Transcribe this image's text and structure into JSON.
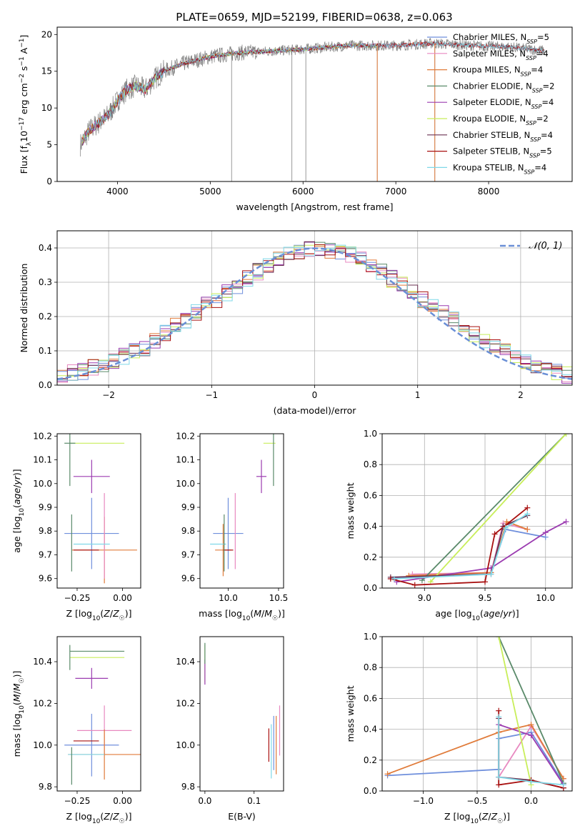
{
  "figure_title": "PLATE=0659, MJD=52199, FIBERID=0638, z=0.063",
  "colors": {
    "chabrier_miles": "#6f8fdc",
    "salpeter_miles": "#e889c0",
    "kroupa_miles": "#e07b3a",
    "chabrier_elodie": "#5a8a6a",
    "salpeter_elodie": "#9b3bb0",
    "kroupa_elodie": "#c8ee5a",
    "chabrier_stelib": "#6a3050",
    "salpeter_stelib": "#a81010",
    "kroupa_stelib": "#7fd8e8",
    "data": "#808080",
    "normal": "#6a8fd6",
    "grid": "#b0b0b0"
  },
  "chart_data": [
    {
      "id": "spectrum",
      "type": "line",
      "title": "",
      "xlabel": "wavelength [Angstrom, rest frame]",
      "ylabel": "Flux [f_λ10^-17 erg cm^-2 s^-1 A^-1]",
      "xlim": [
        3350,
        8900
      ],
      "ylim": [
        0,
        21
      ],
      "xticks": [
        4000,
        5000,
        6000,
        7000,
        8000
      ],
      "yticks": [
        0,
        5,
        10,
        15,
        20
      ],
      "grid": false,
      "legend_position": "right",
      "legend": [
        {
          "label": "Chabrier MILES, N",
          "sub": "SSP",
          "suffix": "=5",
          "color_key": "chabrier_miles"
        },
        {
          "label": "Salpeter MILES, N",
          "sub": "SSP",
          "suffix": "=4",
          "color_key": "salpeter_miles"
        },
        {
          "label": "Kroupa MILES, N",
          "sub": "SSP",
          "suffix": "=4",
          "color_key": "kroupa_miles"
        },
        {
          "label": "Chabrier ELODIE, N",
          "sub": "SSP",
          "suffix": "=2",
          "color_key": "chabrier_elodie"
        },
        {
          "label": "Salpeter ELODIE, N",
          "sub": "SSP",
          "suffix": "=4",
          "color_key": "salpeter_elodie"
        },
        {
          "label": "Kroupa ELODIE, N",
          "sub": "SSP",
          "suffix": "=2",
          "color_key": "kroupa_elodie"
        },
        {
          "label": "Chabrier STELIB, N",
          "sub": "SSP",
          "suffix": "=4",
          "color_key": "chabrier_stelib"
        },
        {
          "label": "Salpeter STELIB, N",
          "sub": "SSP",
          "suffix": "=5",
          "color_key": "salpeter_stelib"
        },
        {
          "label": "Kroupa STELIB, N",
          "sub": "SSP",
          "suffix": "=4",
          "color_key": "kroupa_stelib"
        }
      ],
      "continuum": {
        "x": [
          3600,
          3700,
          3800,
          3900,
          4000,
          4100,
          4200,
          4300,
          4400,
          4500,
          4700,
          5000,
          5300,
          5600,
          6000,
          6500,
          7000,
          7400,
          7800,
          8200,
          8600
        ],
        "y": [
          5,
          7,
          8,
          9,
          11,
          12.5,
          13,
          12.5,
          14,
          15,
          16,
          17,
          17.5,
          17.7,
          18,
          18.5,
          18.5,
          18.8,
          18.5,
          18.3,
          17.8
        ]
      },
      "data_spikes": [
        {
          "x": 5230,
          "y_low": 0
        },
        {
          "x": 5880,
          "y_low": 0
        },
        {
          "x": 6030,
          "y_low": 0
        },
        {
          "x": 6800,
          "y_low": 0
        },
        {
          "x": 7420,
          "y_low": 0
        }
      ]
    },
    {
      "id": "residual_hist",
      "type": "line",
      "title": "",
      "xlabel": "(data-model)/error",
      "ylabel": "Normed distribution",
      "xlim": [
        -2.5,
        2.5
      ],
      "ylim": [
        0,
        0.45
      ],
      "xticks": [
        -2,
        -1,
        0,
        1,
        2
      ],
      "yticks": [
        0.0,
        0.1,
        0.2,
        0.3,
        0.4
      ],
      "grid": true,
      "legend_position": "top-right",
      "legend": [
        {
          "label": "N(0,1)",
          "color_key": "normal"
        }
      ],
      "bin_width": 0.1,
      "bin_start": -2.5,
      "base_hist": [
        0.03,
        0.035,
        0.04,
        0.05,
        0.06,
        0.07,
        0.085,
        0.1,
        0.11,
        0.13,
        0.15,
        0.17,
        0.19,
        0.21,
        0.235,
        0.25,
        0.27,
        0.29,
        0.31,
        0.33,
        0.35,
        0.37,
        0.38,
        0.39,
        0.395,
        0.4,
        0.395,
        0.39,
        0.38,
        0.37,
        0.35,
        0.33,
        0.31,
        0.29,
        0.27,
        0.25,
        0.23,
        0.21,
        0.19,
        0.17,
        0.15,
        0.13,
        0.11,
        0.1,
        0.085,
        0.07,
        0.06,
        0.05,
        0.04,
        0.03
      ]
    },
    {
      "id": "age_vs_Z",
      "type": "scatter",
      "title": "",
      "xlabel": "Z [log10(Z/Z☉)]",
      "ylabel": "age  [log10(age/yr)]",
      "xlim": [
        -0.36,
        0.1
      ],
      "ylim": [
        9.56,
        10.21
      ],
      "xticks": [
        -0.25,
        0.0
      ],
      "yticks": [
        9.6,
        9.7,
        9.8,
        9.9,
        10.0,
        10.1,
        10.2
      ],
      "grid": false,
      "points": [
        {
          "x": -0.29,
          "y": 10.17,
          "xerr": 0.0,
          "yerr": 0.0,
          "x0": -0.29,
          "x1": 0.01,
          "y0": 10.17,
          "y1": 10.17,
          "color_key": "kroupa_elodie"
        },
        {
          "x": -0.29,
          "y": 10.17,
          "xerr": 0.03,
          "yerr": 0.18,
          "color_key": "chabrier_elodie"
        },
        {
          "x": -0.17,
          "y": 10.03,
          "xerr": 0.1,
          "yerr": 0.07,
          "color_key": "salpeter_elodie"
        },
        {
          "x": -0.17,
          "y": 9.79,
          "xerr": 0.15,
          "yerr": 0.15,
          "color_key": "chabrier_miles"
        },
        {
          "x": -0.1,
          "y": 9.72,
          "xerr": 0.18,
          "yerr": 0.14,
          "color_key": "kroupa_miles"
        },
        {
          "x": -0.1,
          "y": 9.78,
          "xerr": 0.0,
          "yerr": 0.18,
          "color_key": "salpeter_miles"
        },
        {
          "x": -0.17,
          "y": 9.745,
          "xerr": 0.1,
          "yerr": 0.0,
          "color_key": "kroupa_stelib"
        },
        {
          "x": -0.2,
          "y": 9.72,
          "xerr": 0.07,
          "yerr": 0.0,
          "color_key": "salpeter_stelib"
        },
        {
          "x": -0.28,
          "y": 9.75,
          "xerr": 0.0,
          "yerr": 0.12,
          "color_key": "chabrier_elodie"
        }
      ]
    },
    {
      "id": "age_vs_mass",
      "type": "scatter",
      "title": "",
      "xlabel": "mass [log10(M/M☉)]",
      "ylabel": "",
      "xlim": [
        9.72,
        10.55
      ],
      "ylim": [
        9.56,
        10.21
      ],
      "xticks": [
        10.0,
        10.5
      ],
      "yticks": [
        9.6,
        9.7,
        9.8,
        9.9,
        10.0,
        10.1,
        10.2
      ],
      "grid": false,
      "points": [
        {
          "x": 10.41,
          "y": 10.17,
          "xerr": 0.06,
          "yerr": 0.0,
          "color_key": "kroupa_elodie"
        },
        {
          "x": 10.45,
          "y": 10.17,
          "xerr": 0.0,
          "yerr": 0.18,
          "color_key": "chabrier_elodie"
        },
        {
          "x": 10.33,
          "y": 10.03,
          "xerr": 0.05,
          "yerr": 0.07,
          "color_key": "salpeter_elodie"
        },
        {
          "x": 10.0,
          "y": 9.79,
          "xerr": 0.15,
          "yerr": 0.15,
          "color_key": "chabrier_miles"
        },
        {
          "x": 9.95,
          "y": 9.72,
          "xerr": 0.08,
          "yerr": 0.11,
          "color_key": "kroupa_miles"
        },
        {
          "x": 10.07,
          "y": 9.8,
          "xerr": 0.0,
          "yerr": 0.16,
          "color_key": "salpeter_miles"
        },
        {
          "x": 9.9,
          "y": 9.745,
          "xerr": 0.08,
          "yerr": 0.0,
          "color_key": "kroupa_stelib"
        },
        {
          "x": 10.0,
          "y": 9.72,
          "xerr": 0.05,
          "yerr": 0.0,
          "color_key": "salpeter_stelib"
        },
        {
          "x": 9.96,
          "y": 9.75,
          "xerr": 0.0,
          "yerr": 0.12,
          "color_key": "chabrier_elodie"
        }
      ]
    },
    {
      "id": "massweight_vs_age",
      "type": "line",
      "title": "",
      "xlabel": "age  [log10(age/yr)]",
      "ylabel": "mass weight",
      "xlim": [
        8.65,
        10.22
      ],
      "ylim": [
        0,
        1
      ],
      "xticks": [
        9.0,
        9.5,
        10.0
      ],
      "yticks": [
        0.0,
        0.2,
        0.4,
        0.6,
        0.8,
        1.0
      ],
      "grid": true,
      "series": [
        {
          "color_key": "chabrier_miles",
          "x": [
            8.72,
            9.55,
            9.67,
            10.0
          ],
          "y": [
            0.06,
            0.1,
            0.38,
            0.33
          ]
        },
        {
          "color_key": "salpeter_miles",
          "x": [
            8.9,
            9.55,
            9.65,
            9.85
          ],
          "y": [
            0.09,
            0.1,
            0.42,
            0.38
          ]
        },
        {
          "color_key": "kroupa_miles",
          "x": [
            8.87,
            9.55,
            9.68,
            9.85
          ],
          "y": [
            0.08,
            0.1,
            0.43,
            0.38
          ]
        },
        {
          "color_key": "chabrier_elodie",
          "x": [
            8.98,
            10.17
          ],
          "y": [
            0.05,
            1.0
          ]
        },
        {
          "color_key": "salpeter_elodie",
          "x": [
            8.77,
            9.55,
            10.0,
            10.17
          ],
          "y": [
            0.04,
            0.13,
            0.36,
            0.43
          ]
        },
        {
          "color_key": "kroupa_elodie",
          "x": [
            9.05,
            10.17
          ],
          "y": [
            0.04,
            1.0
          ]
        },
        {
          "color_key": "chabrier_stelib",
          "x": [
            8.72,
            9.55,
            9.65,
            9.85
          ],
          "y": [
            0.07,
            0.09,
            0.4,
            0.47
          ]
        },
        {
          "color_key": "salpeter_stelib",
          "x": [
            8.72,
            8.92,
            9.5,
            9.58,
            9.85
          ],
          "y": [
            0.06,
            0.02,
            0.04,
            0.35,
            0.52
          ]
        },
        {
          "color_key": "kroupa_stelib",
          "x": [
            8.75,
            9.55,
            9.67,
            9.85
          ],
          "y": [
            0.06,
            0.09,
            0.39,
            0.48
          ]
        }
      ]
    },
    {
      "id": "mass_vs_Z",
      "type": "scatter",
      "title": "",
      "xlabel": "Z [log10(Z/Z☉)]",
      "ylabel": "mass [log10(M/M☉)]",
      "xlim": [
        -0.36,
        0.1
      ],
      "ylim": [
        9.78,
        10.52
      ],
      "xticks": [
        -0.25,
        0.0
      ],
      "yticks": [
        9.8,
        10.0,
        10.2,
        10.4
      ],
      "grid": false,
      "points": [
        {
          "x": -0.14,
          "y": 10.45,
          "xerr": 0.15,
          "yerr": 0.0,
          "color_key": "chabrier_elodie"
        },
        {
          "x": -0.14,
          "y": 10.42,
          "xerr": 0.15,
          "yerr": 0.0,
          "color_key": "kroupa_elodie"
        },
        {
          "x": -0.29,
          "y": 10.42,
          "xerr": 0.0,
          "yerr": 0.06,
          "color_key": "chabrier_elodie"
        },
        {
          "x": -0.17,
          "y": 10.32,
          "xerr": 0.09,
          "yerr": 0.05,
          "color_key": "salpeter_elodie"
        },
        {
          "x": -0.17,
          "y": 10.0,
          "xerr": 0.15,
          "yerr": 0.15,
          "color_key": "chabrier_miles"
        },
        {
          "x": -0.1,
          "y": 10.07,
          "xerr": 0.15,
          "yerr": 0.12,
          "color_key": "salpeter_miles"
        },
        {
          "x": -0.1,
          "y": 9.955,
          "xerr": 0.2,
          "yerr": 0.12,
          "color_key": "kroupa_miles"
        },
        {
          "x": -0.2,
          "y": 10.02,
          "xerr": 0.07,
          "yerr": 0.0,
          "color_key": "salpeter_stelib"
        },
        {
          "x": -0.2,
          "y": 9.955,
          "xerr": 0.1,
          "yerr": 0.0,
          "color_key": "kroupa_stelib"
        },
        {
          "x": -0.28,
          "y": 9.9,
          "xerr": 0.0,
          "yerr": 0.09,
          "color_key": "chabrier_elodie"
        }
      ]
    },
    {
      "id": "mass_vs_ebv",
      "type": "scatter",
      "title": "",
      "xlabel": "E(B-V)",
      "ylabel": "",
      "xlim": [
        -0.01,
        0.16
      ],
      "ylim": [
        9.78,
        10.52
      ],
      "xticks": [
        0.0,
        0.1
      ],
      "yticks": [
        9.8,
        10.0,
        10.2,
        10.4
      ],
      "grid": false,
      "points": [
        {
          "x": 0.0,
          "y": 10.39,
          "xerr": 0.0,
          "yerr": 0.09,
          "color_key": "kroupa_elodie"
        },
        {
          "x": 0.0,
          "y": 10.35,
          "xerr": 0.0,
          "yerr": 0.06,
          "color_key": "salpeter_elodie"
        },
        {
          "x": 0.0,
          "y": 10.44,
          "xerr": 0.0,
          "yerr": 0.05,
          "color_key": "chabrier_elodie"
        },
        {
          "x": 0.13,
          "y": 10.0,
          "xerr": 0.0,
          "yerr": 0.08,
          "color_key": "salpeter_stelib"
        },
        {
          "x": 0.135,
          "y": 9.97,
          "xerr": 0.0,
          "yerr": 0.13,
          "color_key": "kroupa_stelib"
        },
        {
          "x": 0.14,
          "y": 10.01,
          "xerr": 0.0,
          "yerr": 0.13,
          "color_key": "chabrier_miles"
        },
        {
          "x": 0.145,
          "y": 10.0,
          "xerr": 0.0,
          "yerr": 0.14,
          "color_key": "kroupa_miles"
        },
        {
          "x": 0.152,
          "y": 10.07,
          "xerr": 0.0,
          "yerr": 0.12,
          "color_key": "salpeter_miles"
        }
      ]
    },
    {
      "id": "massweight_vs_Z",
      "type": "line",
      "title": "",
      "xlabel": "Z [log10(Z/Z☉)]",
      "ylabel": "mass weight",
      "xlim": [
        -1.38,
        0.38
      ],
      "ylim": [
        0,
        1
      ],
      "xticks": [
        -1.0,
        -0.5,
        0.0
      ],
      "yticks": [
        0.0,
        0.2,
        0.4,
        0.6,
        0.8,
        1.0
      ],
      "grid": true,
      "series": [
        {
          "color_key": "chabrier_miles",
          "x": [
            -1.33,
            -0.3,
            -0.3,
            0.0,
            0.3
          ],
          "y": [
            0.1,
            0.14,
            0.34,
            0.38,
            0.05
          ]
        },
        {
          "color_key": "salpeter_miles",
          "x": [
            -0.3,
            0.0,
            0.3
          ],
          "y": [
            0.09,
            0.42,
            0.08
          ]
        },
        {
          "color_key": "kroupa_miles",
          "x": [
            -1.33,
            -0.3,
            0.0,
            0.3
          ],
          "y": [
            0.11,
            0.38,
            0.43,
            0.08
          ]
        },
        {
          "color_key": "chabrier_elodie",
          "x": [
            -0.3,
            0.3
          ],
          "y": [
            1.0,
            0.05
          ]
        },
        {
          "color_key": "salpeter_elodie",
          "x": [
            -0.3,
            0.0,
            0.3
          ],
          "y": [
            0.43,
            0.36,
            0.04
          ]
        },
        {
          "color_key": "kroupa_elodie",
          "x": [
            -0.3,
            0.0
          ],
          "y": [
            1.0,
            0.04
          ]
        },
        {
          "color_key": "chabrier_stelib",
          "x": [
            -0.3,
            -0.3,
            0.0,
            0.3
          ],
          "y": [
            0.47,
            0.09,
            0.07,
            0.02
          ]
        },
        {
          "color_key": "salpeter_stelib",
          "x": [
            -0.3,
            -0.3,
            0.0,
            0.3
          ],
          "y": [
            0.52,
            0.04,
            0.07,
            0.02
          ]
        },
        {
          "color_key": "kroupa_stelib",
          "x": [
            -0.3,
            -0.3,
            0.0,
            0.3
          ],
          "y": [
            0.48,
            0.09,
            0.06,
            0.04
          ]
        }
      ]
    }
  ]
}
